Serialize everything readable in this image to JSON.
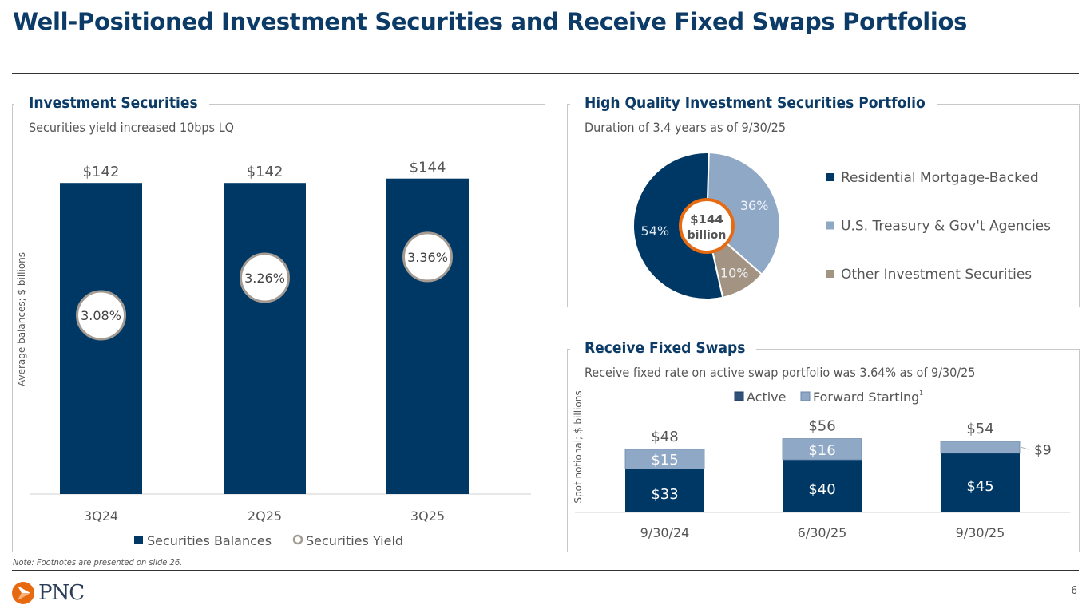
{
  "title": "Well-Positioned Investment Securities and Receive Fixed Swaps Portfolios",
  "note": "Note: Footnotes are presented on slide 26.",
  "page_number": "6",
  "logo_text": "PNC",
  "colors": {
    "navy": "#003865",
    "light_blue": "#8fa8c6",
    "taupe": "#a39382",
    "orange": "#e86a10",
    "title": "#0b3b66"
  },
  "panels": {
    "investment": {
      "title": "Investment Securities",
      "subtitle": "Securities yield increased 10bps LQ"
    },
    "portfolio": {
      "title": "High Quality Investment Securities Portfolio",
      "subtitle": "Duration of 3.4 years as of 9/30/25"
    },
    "swaps": {
      "title": "Receive Fixed Swaps",
      "subtitle": "Receive fixed rate on active swap portfolio was 3.64% as of 9/30/25"
    }
  },
  "chart_data": [
    {
      "type": "bar",
      "categories": [
        "3Q24",
        "2Q25",
        "3Q25"
      ],
      "ylabel": "Average balances; $ billions",
      "series": [
        {
          "name": "Securities Balances",
          "type": "bar",
          "values": [
            142,
            142,
            144
          ],
          "labels": [
            "$142",
            "$142",
            "$144"
          ]
        },
        {
          "name": "Securities Yield",
          "type": "marker",
          "values": [
            3.08,
            3.26,
            3.36
          ],
          "labels": [
            "3.08%",
            "3.26%",
            "3.36%"
          ]
        }
      ],
      "legend": "bottom"
    },
    {
      "type": "pie",
      "center_label": [
        "$144",
        "billion"
      ],
      "slices": [
        {
          "name": "Residential Mortgage-Backed",
          "value": 54,
          "label": "54%"
        },
        {
          "name": "U.S. Treasury & Gov't Agencies",
          "value": 36,
          "label": "36%"
        },
        {
          "name": "Other Investment Securities",
          "value": 10,
          "label": "10%"
        }
      ],
      "legend": "right"
    },
    {
      "type": "bar",
      "stacked": true,
      "categories": [
        "9/30/24",
        "6/30/25",
        "9/30/25"
      ],
      "ylabel": "Spot notional; $ billions",
      "series": [
        {
          "name": "Active",
          "values": [
            33,
            40,
            45
          ],
          "labels": [
            "$33",
            "$40",
            "$45"
          ]
        },
        {
          "name": "Forward Starting",
          "superscript": "1",
          "values": [
            15,
            16,
            9
          ],
          "labels": [
            "$15",
            "$16",
            "$9"
          ]
        }
      ],
      "totals": [
        "$48",
        "$56",
        "$54"
      ],
      "legend": "top"
    }
  ]
}
